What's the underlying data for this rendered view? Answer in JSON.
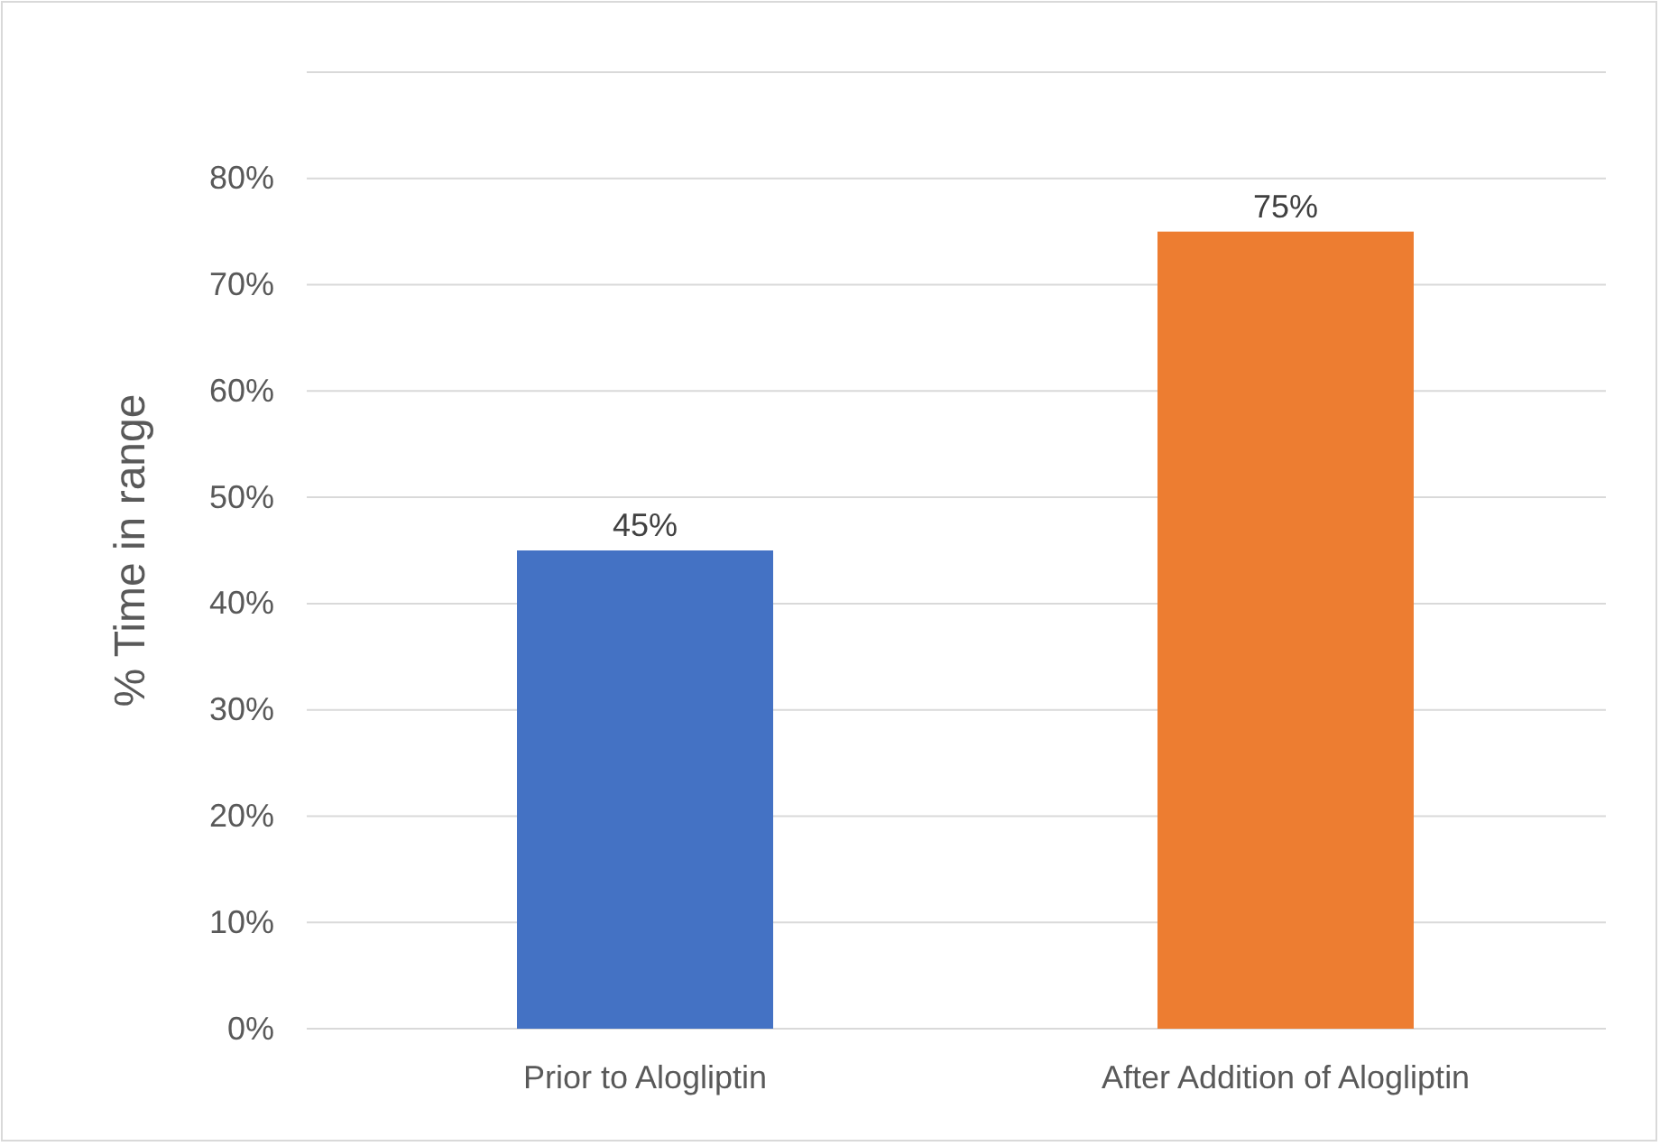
{
  "chart_data": {
    "type": "bar",
    "ylabel": "% Time in range",
    "categories": [
      "Prior to Alogliptin",
      "After Addition of Alogliptin"
    ],
    "values": [
      45,
      75
    ],
    "colors": [
      "#4472c4",
      "#ed7d31"
    ],
    "value_labels": [
      "45%",
      "75%"
    ],
    "ylim": [
      0,
      90
    ],
    "yticks": [
      {
        "value": 0,
        "label": "0%"
      },
      {
        "value": 10,
        "label": "10%"
      },
      {
        "value": 20,
        "label": "20%"
      },
      {
        "value": 30,
        "label": "30%"
      },
      {
        "value": 40,
        "label": "40%"
      },
      {
        "value": 50,
        "label": "50%"
      },
      {
        "value": 60,
        "label": "60%"
      },
      {
        "value": 70,
        "label": "70%"
      },
      {
        "value": 80,
        "label": "80%"
      },
      {
        "value": 90,
        "label": null
      }
    ],
    "grid": "y"
  }
}
